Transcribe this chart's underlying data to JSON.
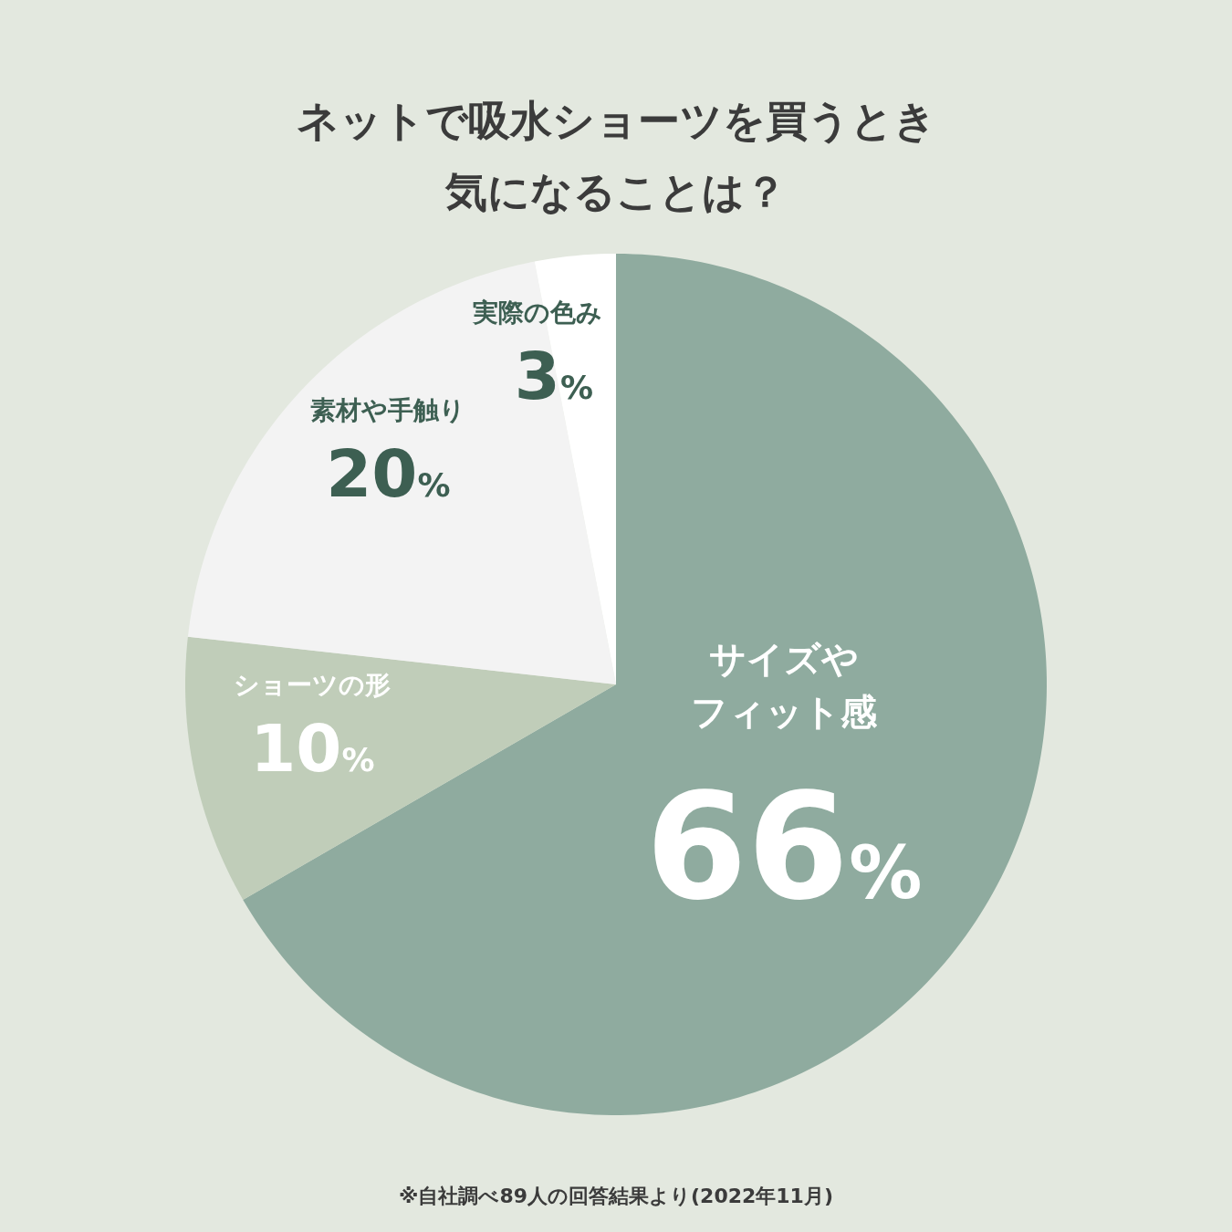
{
  "chart_data": {
    "type": "pie",
    "title": "ネットで吸水ショーツを買うとき気になることは？",
    "categories": [
      "サイズやフィット感",
      "ショーツの形",
      "素材や手触り",
      "実際の色み"
    ],
    "values": [
      66,
      10,
      20,
      3
    ],
    "value_labels": [
      "66%",
      "10%",
      "20%",
      "3%"
    ],
    "colors": [
      "#8fab9f",
      "#c0cdb9",
      "#f3f3f3",
      "#ffffff"
    ],
    "annotations": [
      "※自社調べ89人の回答結果より(2022年11月)"
    ]
  }
}
